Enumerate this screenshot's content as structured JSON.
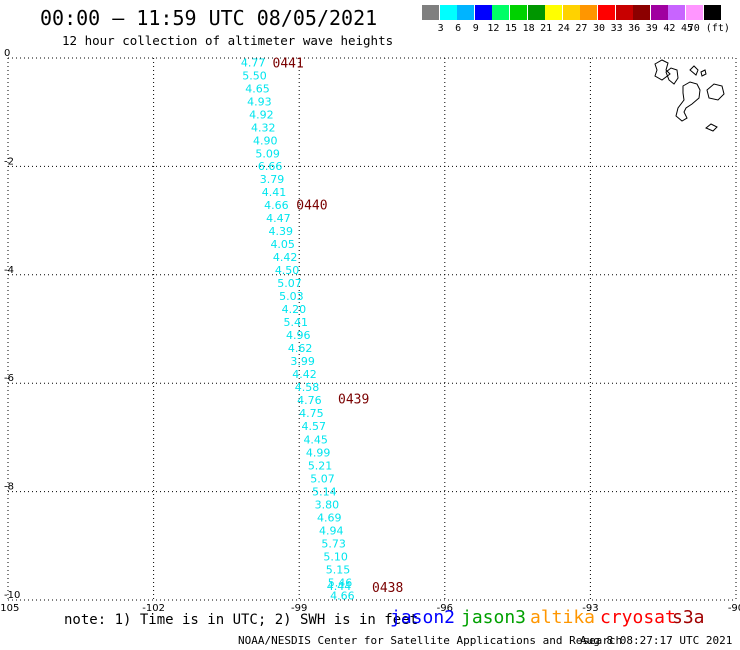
{
  "header": {
    "title": "00:00 – 11:59 UTC 08/05/2021",
    "subtitle": "12 hour collection of altimeter wave heights"
  },
  "colorbar": {
    "colors": [
      "#7f7f7f",
      "#00ffff",
      "#00b4ff",
      "#0000ff",
      "#00ff66",
      "#00d200",
      "#009600",
      "#ffff00",
      "#ffd200",
      "#ff9600",
      "#ff0000",
      "#c80000",
      "#8c0000",
      "#a000a0",
      "#c864ff",
      "#ff96ff",
      "#000000"
    ],
    "labels": [
      "3",
      "6",
      "9",
      "12",
      "15",
      "18",
      "21",
      "24",
      "27",
      "30",
      "33",
      "36",
      "39",
      "42",
      "45",
      "70 (ft)"
    ]
  },
  "map": {
    "xlim": [
      -105,
      -90
    ],
    "ylim": [
      -10,
      0
    ],
    "x_ticks": [
      "-105",
      "-102",
      "-99",
      "-96",
      "-93",
      "-90"
    ],
    "y_ticks": [
      "0",
      "-2",
      "-4",
      "-6",
      "-8",
      "-10"
    ],
    "track_color": "#00e5ee",
    "time_color": "#7a0000",
    "points": [
      {
        "lon": -99.95,
        "lat": -0.08,
        "v": "4.77"
      },
      {
        "lon": -99.92,
        "lat": -0.32,
        "v": "5.50"
      },
      {
        "lon": -99.86,
        "lat": -0.56,
        "v": "4.65"
      },
      {
        "lon": -99.82,
        "lat": -0.8,
        "v": "4.93"
      },
      {
        "lon": -99.78,
        "lat": -1.04,
        "v": "4.92"
      },
      {
        "lon": -99.74,
        "lat": -1.28,
        "v": "4.32"
      },
      {
        "lon": -99.7,
        "lat": -1.52,
        "v": "4.90"
      },
      {
        "lon": -99.65,
        "lat": -1.76,
        "v": "5.09"
      },
      {
        "lon": -99.6,
        "lat": -1.99,
        "v": "6.66"
      },
      {
        "lon": -99.56,
        "lat": -2.23,
        "v": "3.79"
      },
      {
        "lon": -99.52,
        "lat": -2.47,
        "v": "4.41"
      },
      {
        "lon": -99.47,
        "lat": -2.71,
        "v": "4.66"
      },
      {
        "lon": -99.43,
        "lat": -2.95,
        "v": "4.47"
      },
      {
        "lon": -99.38,
        "lat": -3.19,
        "v": "4.39"
      },
      {
        "lon": -99.34,
        "lat": -3.43,
        "v": "4.05"
      },
      {
        "lon": -99.29,
        "lat": -3.67,
        "v": "4.42"
      },
      {
        "lon": -99.25,
        "lat": -3.91,
        "v": "4.50"
      },
      {
        "lon": -99.2,
        "lat": -4.15,
        "v": "5.07"
      },
      {
        "lon": -99.16,
        "lat": -4.39,
        "v": "5.03"
      },
      {
        "lon": -99.11,
        "lat": -4.63,
        "v": "4.20"
      },
      {
        "lon": -99.07,
        "lat": -4.87,
        "v": "5.41"
      },
      {
        "lon": -99.02,
        "lat": -5.11,
        "v": "4.96"
      },
      {
        "lon": -98.98,
        "lat": -5.35,
        "v": "4.62"
      },
      {
        "lon": -98.93,
        "lat": -5.59,
        "v": "3.99"
      },
      {
        "lon": -98.89,
        "lat": -5.83,
        "v": "4.42"
      },
      {
        "lon": -98.84,
        "lat": -6.07,
        "v": "4.58"
      },
      {
        "lon": -98.79,
        "lat": -6.31,
        "v": "4.76"
      },
      {
        "lon": -98.75,
        "lat": -6.55,
        "v": "4.75"
      },
      {
        "lon": -98.7,
        "lat": -6.79,
        "v": "4.57"
      },
      {
        "lon": -98.66,
        "lat": -7.04,
        "v": "4.45"
      },
      {
        "lon": -98.61,
        "lat": -7.28,
        "v": "4.99"
      },
      {
        "lon": -98.57,
        "lat": -7.52,
        "v": "5.21"
      },
      {
        "lon": -98.52,
        "lat": -7.76,
        "v": "5.07"
      },
      {
        "lon": -98.48,
        "lat": -8.0,
        "v": "5.14"
      },
      {
        "lon": -98.43,
        "lat": -8.24,
        "v": "3.80"
      },
      {
        "lon": -98.38,
        "lat": -8.48,
        "v": "4.69"
      },
      {
        "lon": -98.34,
        "lat": -8.72,
        "v": "4.94"
      },
      {
        "lon": -98.29,
        "lat": -8.96,
        "v": "5.73"
      },
      {
        "lon": -98.25,
        "lat": -9.2,
        "v": "5.10"
      },
      {
        "lon": -98.2,
        "lat": -9.44,
        "v": "5.15"
      },
      {
        "lon": -98.16,
        "lat": -9.68,
        "v": "5.46"
      },
      {
        "lon": -98.18,
        "lat": -9.74,
        "v": "4.44"
      },
      {
        "lon": -98.11,
        "lat": -9.92,
        "v": "4.66"
      }
    ],
    "time_labels": [
      {
        "lon": -99.55,
        "lat": -0.08,
        "t": "0441"
      },
      {
        "lon": -99.06,
        "lat": -2.7,
        "t": "0440"
      },
      {
        "lon": -98.2,
        "lat": -6.28,
        "t": "0439"
      },
      {
        "lon": -97.5,
        "lat": -9.76,
        "t": "0438"
      }
    ]
  },
  "footer": {
    "note": "note: 1) Time is in UTC; 2) SWH is in feet",
    "satellites": [
      {
        "name": "jason2",
        "color": "#0000ff"
      },
      {
        "name": "jason3",
        "color": "#00a000"
      },
      {
        "name": "altika",
        "color": "#ff9600"
      },
      {
        "name": "cryosat",
        "color": "#ff0000"
      },
      {
        "name": "s3a",
        "color": "#a00000"
      }
    ],
    "credit": "NOAA/NESDIS Center for Satellite Applications and Research",
    "timestamp": "Aug  8 08:27:17 UTC 2021"
  }
}
